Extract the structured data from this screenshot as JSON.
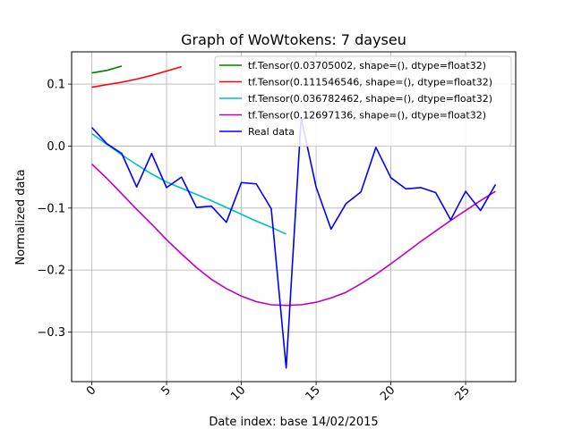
{
  "chart_data": {
    "type": "line",
    "title": "Graph of WoWtokens: 7 dayseu",
    "xlabel": "Date index: base 14/02/2015",
    "ylabel": "Normalized data",
    "xlim": [
      -1.35,
      28.35
    ],
    "ylim": [
      -0.38,
      0.152
    ],
    "xticks": [
      0,
      5,
      10,
      15,
      20,
      25
    ],
    "yticks": [
      -0.3,
      -0.2,
      -0.1,
      0.0,
      0.1
    ],
    "ytick_labels": [
      "−0.3",
      "−0.2",
      "−0.1",
      "0.0",
      "0.1"
    ],
    "grid": true,
    "legend_position": "top-right",
    "series": [
      {
        "name": "tf.Tensor(0.03705002, shape=(), dtype=float32)",
        "color": "#008000",
        "x": [
          0,
          1,
          2
        ],
        "y": [
          0.118,
          0.122,
          0.129
        ]
      },
      {
        "name": "tf.Tensor(0.111546546, shape=(), dtype=float32)",
        "color": "#ff0000",
        "x": [
          0,
          1,
          2,
          3,
          4,
          5,
          6
        ],
        "y": [
          0.095,
          0.099,
          0.103,
          0.108,
          0.114,
          0.121,
          0.128
        ]
      },
      {
        "name": "tf.Tensor(0.036782462, shape=(), dtype=float32)",
        "color": "#00bfbf",
        "x": [
          0,
          1,
          2,
          3,
          4,
          5,
          6,
          7,
          8,
          9,
          10,
          11,
          12,
          13
        ],
        "y": [
          0.02,
          0.003,
          -0.014,
          -0.03,
          -0.045,
          -0.058,
          -0.068,
          -0.078,
          -0.088,
          -0.099,
          -0.11,
          -0.121,
          -0.131,
          -0.142
        ]
      },
      {
        "name": "tf.Tensor(0.12697136, shape=(), dtype=float32)",
        "color": "#bf00bf",
        "x": [
          0,
          1,
          2,
          3,
          4,
          5,
          6,
          7,
          8,
          9,
          10,
          11,
          12,
          13,
          14,
          15,
          16,
          17,
          18,
          19,
          20,
          21,
          22,
          23,
          24,
          25,
          26,
          27
        ],
        "y": [
          -0.029,
          -0.052,
          -0.077,
          -0.102,
          -0.126,
          -0.151,
          -0.174,
          -0.196,
          -0.215,
          -0.23,
          -0.242,
          -0.251,
          -0.256,
          -0.257,
          -0.256,
          -0.252,
          -0.245,
          -0.236,
          -0.222,
          -0.207,
          -0.19,
          -0.172,
          -0.154,
          -0.137,
          -0.12,
          -0.104,
          -0.088,
          -0.073
        ]
      },
      {
        "name": "Real data",
        "color": "#0000ff",
        "x": [
          0,
          1,
          2,
          3,
          4,
          5,
          6,
          7,
          8,
          9,
          10,
          11,
          12,
          13,
          14,
          15,
          16,
          17,
          18,
          19,
          20,
          21,
          22,
          23,
          24,
          25,
          26,
          27
        ],
        "y": [
          0.03,
          0.004,
          -0.012,
          -0.066,
          -0.012,
          -0.067,
          -0.05,
          -0.099,
          -0.097,
          -0.123,
          -0.059,
          -0.061,
          -0.101,
          -0.358,
          0.045,
          -0.066,
          -0.134,
          -0.093,
          -0.074,
          -0.002,
          -0.051,
          -0.069,
          -0.067,
          -0.075,
          -0.119,
          -0.073,
          -0.104,
          -0.062
        ]
      }
    ]
  }
}
